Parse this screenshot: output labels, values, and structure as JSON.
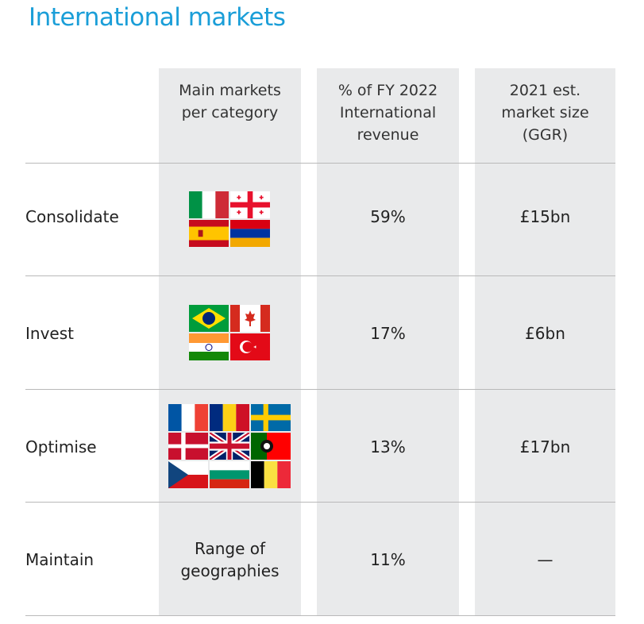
{
  "title": "International markets",
  "headers": {
    "col1": [
      "Main markets",
      "per category"
    ],
    "col2": [
      "% of FY 2022",
      "International",
      "revenue"
    ],
    "col3": [
      "2021 est.",
      "market size",
      "(GGR)"
    ]
  },
  "rows": [
    {
      "label": "Consolidate",
      "revenue_share": "59%",
      "market_size": "£15bn",
      "flags": [
        "italy-flag",
        "georgia-flag",
        "spain-flag",
        "armenia-flag"
      ]
    },
    {
      "label": "Invest",
      "revenue_share": "17%",
      "market_size": "£6bn",
      "flags": [
        "brazil-flag",
        "canada-flag",
        "india-flag",
        "turkey-flag"
      ]
    },
    {
      "label": "Optimise",
      "revenue_share": "13%",
      "market_size": "£17bn",
      "flags": [
        "france-flag",
        "romania-flag",
        "sweden-flag",
        "denmark-flag",
        "uk-flag",
        "portugal-flag",
        "czech-flag",
        "bulgaria-flag",
        "belgium-flag"
      ]
    },
    {
      "label": "Maintain",
      "markets_text": [
        "Range of",
        "geographies"
      ],
      "revenue_share": "11%",
      "market_size": "—"
    }
  ],
  "colors": {
    "title": "#1a9ed8",
    "column_bg": "#e9eaeb",
    "rule": "#b9b9b9"
  }
}
